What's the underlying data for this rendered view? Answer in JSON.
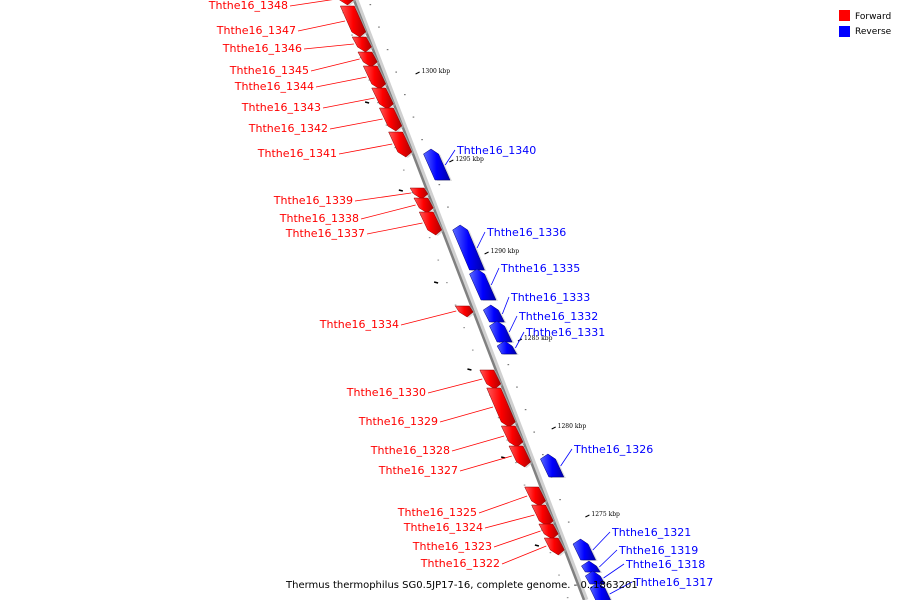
{
  "caption": "Thermus thermophilus SG0.5JP17-16, complete genome. - 0..1863201",
  "legend": [
    {
      "label": "Forward",
      "color": "#ff0000"
    },
    {
      "label": "Reverse",
      "color": "#0000ff"
    }
  ],
  "ticks": [
    "1300 kbp",
    "1295 kbp",
    "1290 kbp",
    "1285 kbp",
    "1280 kbp",
    "1275 kbp"
  ],
  "genes": [
    {
      "name": "Ththe16_1348",
      "strand": "forward"
    },
    {
      "name": "Ththe16_1347",
      "strand": "forward"
    },
    {
      "name": "Ththe16_1346",
      "strand": "forward"
    },
    {
      "name": "Ththe16_1345",
      "strand": "forward"
    },
    {
      "name": "Ththe16_1344",
      "strand": "forward"
    },
    {
      "name": "Ththe16_1343",
      "strand": "forward"
    },
    {
      "name": "Ththe16_1342",
      "strand": "forward"
    },
    {
      "name": "Ththe16_1341",
      "strand": "forward"
    },
    {
      "name": "Ththe16_1340",
      "strand": "reverse"
    },
    {
      "name": "Ththe16_1339",
      "strand": "forward"
    },
    {
      "name": "Ththe16_1338",
      "strand": "forward"
    },
    {
      "name": "Ththe16_1337",
      "strand": "forward"
    },
    {
      "name": "Ththe16_1336",
      "strand": "reverse"
    },
    {
      "name": "Ththe16_1335",
      "strand": "reverse"
    },
    {
      "name": "Ththe16_1333",
      "strand": "reverse"
    },
    {
      "name": "Ththe16_1332",
      "strand": "reverse"
    },
    {
      "name": "Ththe16_1331",
      "strand": "reverse"
    },
    {
      "name": "Ththe16_1334",
      "strand": "forward"
    },
    {
      "name": "Ththe16_1330",
      "strand": "forward"
    },
    {
      "name": "Ththe16_1329",
      "strand": "forward"
    },
    {
      "name": "Ththe16_1328",
      "strand": "forward"
    },
    {
      "name": "Ththe16_1327",
      "strand": "forward"
    },
    {
      "name": "Ththe16_1326",
      "strand": "reverse"
    },
    {
      "name": "Ththe16_1325",
      "strand": "forward"
    },
    {
      "name": "Ththe16_1324",
      "strand": "forward"
    },
    {
      "name": "Ththe16_1323",
      "strand": "forward"
    },
    {
      "name": "Ththe16_1322",
      "strand": "forward"
    },
    {
      "name": "Ththe16_1321",
      "strand": "reverse"
    },
    {
      "name": "Ththe16_1319",
      "strand": "reverse"
    },
    {
      "name": "Ththe16_1318",
      "strand": "reverse"
    },
    {
      "name": "Ththe16_1317",
      "strand": "reverse"
    }
  ]
}
